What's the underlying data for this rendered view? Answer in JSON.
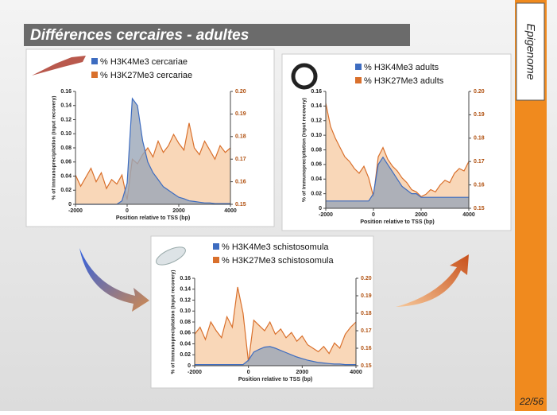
{
  "title": "Différences cercaires - adultes",
  "side_label": "Epigenome",
  "page": "22/56",
  "chart_data": [
    {
      "type": "area",
      "x_label": "Position relative to TSS (bp)",
      "y_label": "% of immunoprecipitation (input recovery)",
      "x": [
        -2000,
        -1800,
        -1600,
        -1400,
        -1200,
        -1000,
        -800,
        -600,
        -400,
        -200,
        0,
        200,
        400,
        600,
        800,
        1000,
        1200,
        1400,
        1600,
        1800,
        2000,
        2200,
        2400,
        2600,
        2800,
        3000,
        3200,
        3400,
        3600,
        3800,
        4000
      ],
      "xlim": [
        -2000,
        4000
      ],
      "xticks": [
        -2000,
        0,
        2000,
        4000
      ],
      "ylim": [
        0,
        0.16
      ],
      "yticks": [
        0,
        0.02,
        0.04,
        0.06,
        0.08,
        {
          "value": 0.1,
          "label": "0.10"
        },
        0.12,
        0.14,
        0.16
      ],
      "y2lim": [
        0.15,
        0.2
      ],
      "y2ticks": [
        0.15,
        0.16,
        0.17,
        0.18,
        0.19,
        {
          "value": 0.2,
          "label": "0.20"
        }
      ],
      "series": [
        {
          "name": "% H3K4Me3 cercariae",
          "color": "#3d6cc0",
          "values": [
            0,
            0,
            0,
            0,
            0,
            0,
            0,
            0,
            0,
            0.005,
            0.03,
            0.15,
            0.14,
            0.09,
            0.06,
            0.045,
            0.035,
            0.025,
            0.02,
            0.015,
            0.01,
            0.008,
            0.005,
            0.004,
            0.003,
            0.002,
            0.002,
            0.001,
            0.001,
            0.001,
            0.001
          ]
        },
        {
          "name": "% H3K27Me3 cercariae",
          "color": "#d9702c",
          "axis": "y2",
          "values": [
            0.163,
            0.158,
            0.162,
            0.166,
            0.16,
            0.164,
            0.157,
            0.161,
            0.159,
            0.163,
            0.152,
            0.17,
            0.168,
            0.172,
            0.175,
            0.171,
            0.178,
            0.173,
            0.176,
            0.181,
            0.177,
            0.174,
            0.186,
            0.175,
            0.172,
            0.178,
            0.174,
            0.17,
            0.176,
            0.173,
            0.175
          ]
        }
      ]
    },
    {
      "type": "area",
      "x_label": "Position relative to TSS (bp)",
      "y_label": "% of immunoprecipitation (input recovery)",
      "x": [
        -2000,
        -1800,
        -1600,
        -1400,
        -1200,
        -1000,
        -800,
        -600,
        -400,
        -200,
        0,
        200,
        400,
        600,
        800,
        1000,
        1200,
        1400,
        1600,
        1800,
        2000,
        2200,
        2400,
        2600,
        2800,
        3000,
        3200,
        3400,
        3600,
        3800,
        4000
      ],
      "xlim": [
        -2000,
        4000
      ],
      "xticks": [
        -2000,
        0,
        2000,
        4000
      ],
      "ylim": [
        0,
        0.16
      ],
      "yticks": [
        0,
        0.02,
        0.04,
        0.06,
        0.08,
        {
          "value": 0.1,
          "label": "0.10"
        },
        0.12,
        0.14,
        0.16
      ],
      "y2lim": [
        0.15,
        0.2
      ],
      "y2ticks": [
        0.15,
        0.16,
        0.17,
        0.18,
        0.19,
        {
          "value": 0.2,
          "label": "0.20"
        }
      ],
      "series": [
        {
          "name": "% H3K4Me3 adults",
          "color": "#3d6cc0",
          "values": [
            0.01,
            0.01,
            0.01,
            0.01,
            0.01,
            0.01,
            0.01,
            0.01,
            0.01,
            0.01,
            0.02,
            0.06,
            0.07,
            0.06,
            0.05,
            0.04,
            0.03,
            0.025,
            0.02,
            0.02,
            0.015,
            0.015,
            0.015,
            0.015,
            0.015,
            0.015,
            0.015,
            0.015,
            0.015,
            0.015,
            0.015
          ]
        },
        {
          "name": "% H3K27Me3 adults",
          "color": "#d9702c",
          "axis": "y2",
          "values": [
            0.195,
            0.185,
            0.18,
            0.176,
            0.172,
            0.17,
            0.167,
            0.165,
            0.168,
            0.163,
            0.155,
            0.172,
            0.176,
            0.171,
            0.168,
            0.166,
            0.163,
            0.161,
            0.158,
            0.157,
            0.155,
            0.156,
            0.158,
            0.157,
            0.16,
            0.162,
            0.161,
            0.165,
            0.167,
            0.166,
            0.17
          ]
        }
      ]
    },
    {
      "type": "area",
      "x_label": "Position relative to TSS (bp)",
      "y_label": "% of immunoprecipitation (input recovery)",
      "x": [
        -2000,
        -1800,
        -1600,
        -1400,
        -1200,
        -1000,
        -800,
        -600,
        -400,
        -200,
        0,
        200,
        400,
        600,
        800,
        1000,
        1200,
        1400,
        1600,
        1800,
        2000,
        2200,
        2400,
        2600,
        2800,
        3000,
        3200,
        3400,
        3600,
        3800,
        4000
      ],
      "xlim": [
        -2000,
        4000
      ],
      "xticks": [
        -2000,
        0,
        2000,
        4000
      ],
      "ylim": [
        0,
        0.16
      ],
      "yticks": [
        0,
        0.02,
        0.04,
        0.06,
        0.08,
        {
          "value": 0.1,
          "label": "0.10"
        },
        0.12,
        0.14,
        0.16
      ],
      "y2lim": [
        0.15,
        0.2
      ],
      "y2ticks": [
        0.15,
        0.16,
        0.17,
        0.18,
        0.19,
        {
          "value": 0.2,
          "label": "0.20"
        }
      ],
      "series": [
        {
          "name": "% H3K4Me3 schistosomula",
          "color": "#3d6cc0",
          "values": [
            0.002,
            0.002,
            0.002,
            0.002,
            0.002,
            0.002,
            0.002,
            0.002,
            0.002,
            0.002,
            0.01,
            0.025,
            0.03,
            0.034,
            0.035,
            0.032,
            0.028,
            0.024,
            0.02,
            0.016,
            0.013,
            0.01,
            0.008,
            0.006,
            0.005,
            0.004,
            0.003,
            0.003,
            0.002,
            0.002,
            0.002
          ]
        },
        {
          "name": "% H3K27Me3 schistosomula",
          "color": "#d9702c",
          "axis": "y2",
          "values": [
            0.168,
            0.172,
            0.165,
            0.175,
            0.17,
            0.166,
            0.178,
            0.172,
            0.195,
            0.18,
            0.152,
            0.176,
            0.173,
            0.17,
            0.175,
            0.168,
            0.171,
            0.166,
            0.169,
            0.164,
            0.167,
            0.162,
            0.16,
            0.158,
            0.161,
            0.157,
            0.163,
            0.16,
            0.168,
            0.172,
            0.175
          ]
        }
      ]
    }
  ]
}
